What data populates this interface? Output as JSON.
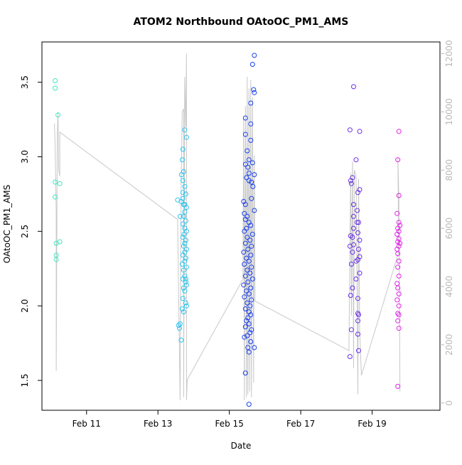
{
  "chart_data": {
    "type": "scatter",
    "title": "ATOM2 Northbound OAtoOC_PM1_AMS",
    "xlabel": "Date",
    "ylabel": "OAtoOC_PM1_AMS",
    "x_ticks": [
      "Feb 11",
      "Feb 13",
      "Feb 15",
      "Feb 17",
      "Feb 19"
    ],
    "x_tick_values": [
      11,
      13,
      15,
      17,
      19
    ],
    "xlim": [
      9.75,
      20.9
    ],
    "y_ticks": [
      "1.5",
      "2.0",
      "2.5",
      "3.0",
      "3.5"
    ],
    "y_tick_values": [
      1.5,
      2.0,
      2.5,
      3.0,
      3.5
    ],
    "ylim": [
      1.3,
      3.77
    ],
    "y2_ticks": [
      "0",
      "2000",
      "4000",
      "6000",
      "8000",
      "10000",
      "12000"
    ],
    "y2_tick_values": [
      0,
      2000,
      4000,
      6000,
      8000,
      10000,
      12000
    ],
    "y2lim": [
      -250,
      12400
    ],
    "grid": false,
    "series": [
      {
        "color": "#3ee8c0",
        "points": [
          [
            10.12,
            3.51
          ],
          [
            10.12,
            3.46
          ],
          [
            10.2,
            3.28
          ],
          [
            10.12,
            2.83
          ],
          [
            10.25,
            2.82
          ],
          [
            10.12,
            2.73
          ],
          [
            10.25,
            2.43
          ],
          [
            10.15,
            2.42
          ],
          [
            10.15,
            2.34
          ],
          [
            10.15,
            2.31
          ]
        ]
      },
      {
        "color": "#2ac4ef",
        "points": [
          [
            13.55,
            2.71
          ],
          [
            13.65,
            2.7
          ],
          [
            13.62,
            2.6
          ],
          [
            13.7,
            2.72
          ],
          [
            13.72,
            2.68
          ],
          [
            13.75,
            3.18
          ],
          [
            13.8,
            3.13
          ],
          [
            13.7,
            3.05
          ],
          [
            13.68,
            2.98
          ],
          [
            13.72,
            2.9
          ],
          [
            13.66,
            2.88
          ],
          [
            13.7,
            2.84
          ],
          [
            13.75,
            2.8
          ],
          [
            13.7,
            2.76
          ],
          [
            13.78,
            2.75
          ],
          [
            13.8,
            2.66
          ],
          [
            13.75,
            2.63
          ],
          [
            13.72,
            2.6
          ],
          [
            13.78,
            2.57
          ],
          [
            13.7,
            2.55
          ],
          [
            13.75,
            2.52
          ],
          [
            13.8,
            2.5
          ],
          [
            13.73,
            2.48
          ],
          [
            13.7,
            2.46
          ],
          [
            13.78,
            2.44
          ],
          [
            13.75,
            2.42
          ],
          [
            13.72,
            2.4
          ],
          [
            13.8,
            2.38
          ],
          [
            13.75,
            2.36
          ],
          [
            13.7,
            2.34
          ],
          [
            13.78,
            2.32
          ],
          [
            13.75,
            2.3
          ],
          [
            13.68,
            2.28
          ],
          [
            13.8,
            2.26
          ],
          [
            13.72,
            2.24
          ],
          [
            13.75,
            2.2
          ],
          [
            13.7,
            2.18
          ],
          [
            13.78,
            2.16
          ],
          [
            13.8,
            2.14
          ],
          [
            13.72,
            2.12
          ],
          [
            13.75,
            2.1
          ],
          [
            13.7,
            2.05
          ],
          [
            13.78,
            2.02
          ],
          [
            13.8,
            2.0
          ],
          [
            13.68,
            1.98
          ],
          [
            13.72,
            1.96
          ],
          [
            13.62,
            1.88
          ],
          [
            13.58,
            1.87
          ],
          [
            13.6,
            1.85
          ],
          [
            13.65,
            1.77
          ],
          [
            13.78,
            2.18
          ],
          [
            13.75,
            2.68
          ]
        ]
      },
      {
        "color": "#1a40ee",
        "points": [
          [
            15.7,
            3.68
          ],
          [
            15.65,
            3.62
          ],
          [
            15.68,
            3.45
          ],
          [
            15.7,
            3.43
          ],
          [
            15.6,
            3.36
          ],
          [
            15.45,
            3.26
          ],
          [
            15.6,
            3.22
          ],
          [
            15.45,
            3.15
          ],
          [
            15.6,
            3.11
          ],
          [
            15.5,
            3.04
          ],
          [
            15.55,
            2.98
          ],
          [
            15.52,
            2.93
          ],
          [
            15.45,
            2.95
          ],
          [
            15.65,
            2.96
          ],
          [
            15.55,
            2.89
          ],
          [
            15.7,
            2.88
          ],
          [
            15.48,
            2.86
          ],
          [
            15.55,
            2.84
          ],
          [
            15.62,
            2.83
          ],
          [
            15.66,
            2.8
          ],
          [
            15.4,
            2.7
          ],
          [
            15.45,
            2.68
          ],
          [
            15.62,
            2.72
          ],
          [
            15.7,
            2.64
          ],
          [
            15.42,
            2.62
          ],
          [
            15.5,
            2.6
          ],
          [
            15.45,
            2.58
          ],
          [
            15.55,
            2.56
          ],
          [
            15.6,
            2.54
          ],
          [
            15.48,
            2.52
          ],
          [
            15.42,
            2.5
          ],
          [
            15.65,
            2.48
          ],
          [
            15.5,
            2.46
          ],
          [
            15.58,
            2.44
          ],
          [
            15.45,
            2.42
          ],
          [
            15.62,
            2.4
          ],
          [
            15.52,
            2.38
          ],
          [
            15.4,
            2.36
          ],
          [
            15.6,
            2.34
          ],
          [
            15.48,
            2.32
          ],
          [
            15.55,
            2.3
          ],
          [
            15.42,
            2.28
          ],
          [
            15.62,
            2.26
          ],
          [
            15.5,
            2.24
          ],
          [
            15.58,
            2.22
          ],
          [
            15.45,
            2.2
          ],
          [
            15.65,
            2.18
          ],
          [
            15.52,
            2.16
          ],
          [
            15.4,
            2.14
          ],
          [
            15.6,
            2.12
          ],
          [
            15.48,
            2.1
          ],
          [
            15.55,
            2.08
          ],
          [
            15.42,
            2.06
          ],
          [
            15.62,
            2.04
          ],
          [
            15.5,
            2.02
          ],
          [
            15.58,
            2.0
          ],
          [
            15.45,
            1.98
          ],
          [
            15.55,
            1.96
          ],
          [
            15.6,
            1.94
          ],
          [
            15.52,
            1.92
          ],
          [
            15.48,
            1.9
          ],
          [
            15.55,
            1.88
          ],
          [
            15.45,
            1.86
          ],
          [
            15.62,
            1.84
          ],
          [
            15.58,
            1.82
          ],
          [
            15.5,
            1.8
          ],
          [
            15.42,
            1.79
          ],
          [
            15.6,
            1.76
          ],
          [
            15.52,
            1.72
          ],
          [
            15.7,
            1.72
          ],
          [
            15.55,
            1.69
          ],
          [
            15.45,
            1.55
          ],
          [
            15.55,
            1.34
          ]
        ]
      },
      {
        "color": "#6a30e8",
        "points": [
          [
            18.48,
            3.47
          ],
          [
            18.38,
            3.18
          ],
          [
            18.65,
            3.17
          ],
          [
            18.55,
            2.98
          ],
          [
            18.45,
            2.86
          ],
          [
            18.4,
            2.84
          ],
          [
            18.42,
            2.82
          ],
          [
            18.65,
            2.78
          ],
          [
            18.6,
            2.76
          ],
          [
            18.48,
            2.68
          ],
          [
            18.58,
            2.64
          ],
          [
            18.48,
            2.6
          ],
          [
            18.62,
            2.56
          ],
          [
            18.58,
            2.56
          ],
          [
            18.48,
            2.52
          ],
          [
            18.6,
            2.49
          ],
          [
            18.4,
            2.47
          ],
          [
            18.45,
            2.46
          ],
          [
            18.65,
            2.44
          ],
          [
            18.48,
            2.41
          ],
          [
            18.38,
            2.4
          ],
          [
            18.62,
            2.38
          ],
          [
            18.45,
            2.36
          ],
          [
            18.65,
            2.33
          ],
          [
            18.6,
            2.31
          ],
          [
            18.55,
            2.3
          ],
          [
            18.42,
            2.28
          ],
          [
            18.65,
            2.22
          ],
          [
            18.55,
            2.18
          ],
          [
            18.45,
            2.12
          ],
          [
            18.4,
            2.07
          ],
          [
            18.6,
            2.05
          ],
          [
            18.6,
            1.95
          ],
          [
            18.62,
            1.94
          ],
          [
            18.6,
            1.9
          ],
          [
            18.42,
            1.84
          ],
          [
            18.6,
            1.81
          ],
          [
            18.62,
            1.7
          ],
          [
            18.38,
            1.66
          ]
        ]
      },
      {
        "color": "#e020e8",
        "points": [
          [
            19.75,
            3.17
          ],
          [
            19.72,
            2.98
          ],
          [
            19.75,
            2.74
          ],
          [
            19.7,
            2.62
          ],
          [
            19.75,
            2.56
          ],
          [
            19.78,
            2.54
          ],
          [
            19.72,
            2.52
          ],
          [
            19.75,
            2.5
          ],
          [
            19.7,
            2.48
          ],
          [
            19.75,
            2.45
          ],
          [
            19.72,
            2.43
          ],
          [
            19.78,
            2.42
          ],
          [
            19.75,
            2.4
          ],
          [
            19.7,
            2.38
          ],
          [
            19.72,
            2.35
          ],
          [
            19.75,
            2.3
          ],
          [
            19.72,
            2.26
          ],
          [
            19.75,
            2.2
          ],
          [
            19.7,
            2.15
          ],
          [
            19.72,
            2.12
          ],
          [
            19.75,
            2.08
          ],
          [
            19.7,
            2.04
          ],
          [
            19.75,
            2.0
          ],
          [
            19.72,
            1.95
          ],
          [
            19.75,
            1.94
          ],
          [
            19.72,
            1.9
          ],
          [
            19.75,
            1.85
          ],
          [
            19.72,
            1.46
          ]
        ]
      }
    ],
    "y2_series": {
      "color": "#c8c8c8",
      "points": [
        [
          10.1,
          9600
        ],
        [
          10.12,
          8800
        ],
        [
          10.15,
          6500
        ],
        [
          10.15,
          1100
        ],
        [
          10.18,
          9200
        ],
        [
          10.2,
          10000
        ],
        [
          10.22,
          8000
        ],
        [
          10.25,
          7800
        ],
        [
          10.25,
          9300
        ],
        [
          13.55,
          6300
        ],
        [
          13.62,
          100
        ],
        [
          13.65,
          7600
        ],
        [
          13.68,
          10000
        ],
        [
          13.72,
          10100
        ],
        [
          13.72,
          200
        ],
        [
          13.75,
          11200
        ],
        [
          13.78,
          9500
        ],
        [
          13.8,
          12000
        ],
        [
          13.8,
          100
        ],
        [
          13.82,
          800
        ],
        [
          15.38,
          4250
        ],
        [
          15.4,
          9800
        ],
        [
          15.42,
          100
        ],
        [
          15.45,
          10200
        ],
        [
          15.48,
          200
        ],
        [
          15.5,
          11200
        ],
        [
          15.52,
          300
        ],
        [
          15.55,
          10800
        ],
        [
          15.57,
          400
        ],
        [
          15.6,
          11100
        ],
        [
          15.62,
          200
        ],
        [
          15.65,
          10500
        ],
        [
          15.68,
          700
        ],
        [
          15.7,
          8500
        ],
        [
          15.72,
          3500
        ],
        [
          18.35,
          1800
        ],
        [
          18.4,
          7900
        ],
        [
          18.42,
          3000
        ],
        [
          18.45,
          8300
        ],
        [
          18.48,
          1200
        ],
        [
          18.5,
          8000
        ],
        [
          18.55,
          7800
        ],
        [
          18.6,
          300
        ],
        [
          18.62,
          7700
        ],
        [
          18.65,
          2500
        ],
        [
          18.7,
          950
        ],
        [
          19.75,
          5200
        ],
        [
          19.72,
          8400
        ],
        [
          19.75,
          7000
        ],
        [
          19.78,
          400
        ]
      ]
    }
  }
}
